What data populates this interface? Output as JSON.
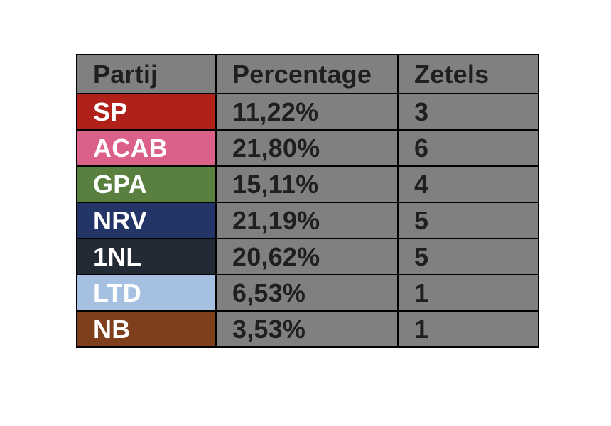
{
  "chart_data": {
    "type": "table",
    "columns": [
      "Partij",
      "Percentage",
      "Zetels"
    ],
    "rows": [
      {
        "party": "SP",
        "percentage": "11,22%",
        "seats": "3",
        "color": "#b0211a"
      },
      {
        "party": "ACAB",
        "percentage": "21,80%",
        "seats": "6",
        "color": "#dc6189"
      },
      {
        "party": "GPA",
        "percentage": "15,11%",
        "seats": "4",
        "color": "#5a8040"
      },
      {
        "party": "NRV",
        "percentage": "21,19%",
        "seats": "5",
        "color": "#233566"
      },
      {
        "party": "1NL",
        "percentage": "20,62%",
        "seats": "5",
        "color": "#222a36"
      },
      {
        "party": "LTD",
        "percentage": "6,53%",
        "seats": "1",
        "color": "#a5c0e0"
      },
      {
        "party": "NB",
        "percentage": "3,53%",
        "seats": "1",
        "color": "#7d3f1c"
      }
    ]
  },
  "colors": {
    "cell_background": "#808080",
    "border": "#000000",
    "text_dark": "#1f1f1f",
    "text_light": "#ffffff"
  }
}
